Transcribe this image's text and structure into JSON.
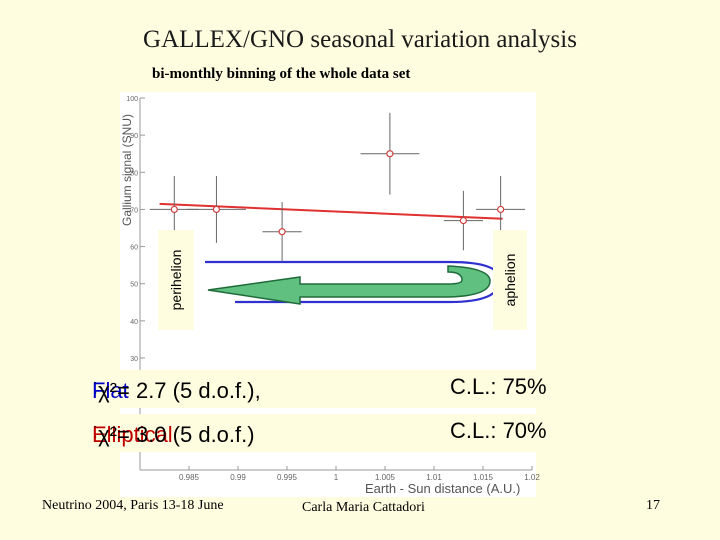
{
  "slide": {
    "title": "GALLEX/GNO seasonal variation analysis",
    "subtitle": "bi-monthly binning of the whole data set",
    "footer_left": "Neutrino 2004, Paris 13-18 June",
    "footer_center": "Carla Maria Cattadori",
    "page_number": "17"
  },
  "chart_data": {
    "type": "scatter",
    "ylabel": "Gallium signal (SNU)",
    "xlabel": "Earth - Sun distance (A.U.)",
    "xlim": [
      0.98,
      1.02
    ],
    "ylim": [
      30,
      100
    ],
    "x_ticks": [
      "0.985",
      "0.99",
      "0.995",
      "1",
      "1.005",
      "1.01",
      "1.015",
      "1.02"
    ],
    "y_ticks": [
      "100",
      "90",
      "80",
      "70",
      "60",
      "50",
      "40",
      "30"
    ],
    "points": [
      {
        "x": 0.9835,
        "y": 70,
        "xerr": 0.0025,
        "yerr": 9
      },
      {
        "x": 0.9878,
        "y": 70,
        "xerr": 0.003,
        "yerr": 9
      },
      {
        "x": 0.9945,
        "y": 64,
        "xerr": 0.002,
        "yerr": 8
      },
      {
        "x": 1.0055,
        "y": 85,
        "xerr": 0.003,
        "yerr": 11
      },
      {
        "x": 1.013,
        "y": 67,
        "xerr": 0.002,
        "yerr": 8
      },
      {
        "x": 1.0168,
        "y": 70,
        "xerr": 0.0025,
        "yerr": 9
      }
    ],
    "fit_line": {
      "x": [
        0.982,
        1.017
      ],
      "y": [
        71.5,
        67.5
      ],
      "color": "#e03030"
    },
    "annotations": {
      "perihelion": "perihelion",
      "aphelion": "aphelion"
    },
    "arrow_color": "#60c080",
    "ellipse_color": "#3030d0"
  },
  "stats": {
    "flat": {
      "label": "Flat",
      "chi": "χ²= 2.7 (5 d.o.f.),",
      "cl": "C.L.: 75%"
    },
    "elliptical": {
      "label": "Elliptical",
      "chi": "χ²= 3.0 (5 d.o.f.)",
      "cl": "C.L.: 70%"
    }
  }
}
